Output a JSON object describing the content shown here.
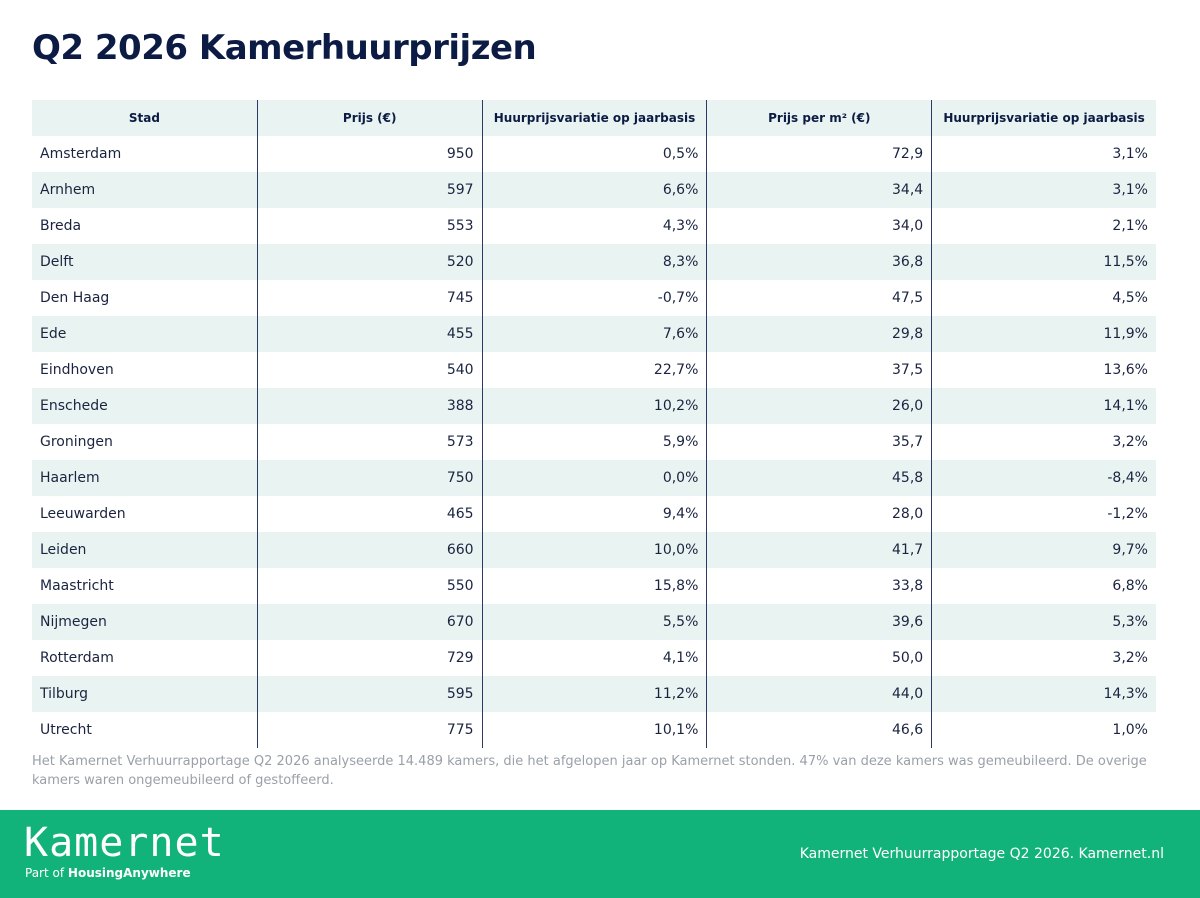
{
  "header": {
    "title": "Q2 2026 Kamerhuurprijzen"
  },
  "table": {
    "columns": [
      "Stad",
      "Prijs (€)",
      "Huurprijsvariatie op jaarbasis",
      "Prijs per m² (€)",
      "Huurprijsvariatie op jaarbasis"
    ],
    "rows": [
      [
        "Amsterdam",
        "950",
        "0,5%",
        "72,9",
        "3,1%"
      ],
      [
        "Arnhem",
        "597",
        "6,6%",
        "34,4",
        "3,1%"
      ],
      [
        "Breda",
        "553",
        "4,3%",
        "34,0",
        "2,1%"
      ],
      [
        "Delft",
        "520",
        "8,3%",
        "36,8",
        "11,5%"
      ],
      [
        "Den Haag",
        "745",
        "-0,7%",
        "47,5",
        "4,5%"
      ],
      [
        "Ede",
        "455",
        "7,6%",
        "29,8",
        "11,9%"
      ],
      [
        "Eindhoven",
        "540",
        "22,7%",
        "37,5",
        "13,6%"
      ],
      [
        "Enschede",
        "388",
        "10,2%",
        "26,0",
        "14,1%"
      ],
      [
        "Groningen",
        "573",
        "5,9%",
        "35,7",
        "3,2%"
      ],
      [
        "Haarlem",
        "750",
        "0,0%",
        "45,8",
        "-8,4%"
      ],
      [
        "Leeuwarden",
        "465",
        "9,4%",
        "28,0",
        "-1,2%"
      ],
      [
        "Leiden",
        "660",
        "10,0%",
        "41,7",
        "9,7%"
      ],
      [
        "Maastricht",
        "550",
        "15,8%",
        "33,8",
        "6,8%"
      ],
      [
        "Nijmegen",
        "670",
        "5,5%",
        "39,6",
        "5,3%"
      ],
      [
        "Rotterdam",
        "729",
        "4,1%",
        "50,0",
        "3,2%"
      ],
      [
        "Tilburg",
        "595",
        "11,2%",
        "44,0",
        "14,3%"
      ],
      [
        "Utrecht",
        "775",
        "10,1%",
        "46,6",
        "1,0%"
      ]
    ]
  },
  "footnote": "Het Kamernet Verhuurrapportage Q2 2026 analyseerde 14.489 kamers, die het afgelopen jaar op Kamernet stonden. 47% van deze kamers was gemeubileerd. De overige kamers waren ongemeubileerd of gestoffeerd.",
  "footer": {
    "logo": "Kamernet",
    "logo_prefix": "Part of",
    "logo_parent": "HousingAnywhere",
    "text": "Kamernet Verhuurrapportage Q2 2026. Kamernet.nl"
  }
}
